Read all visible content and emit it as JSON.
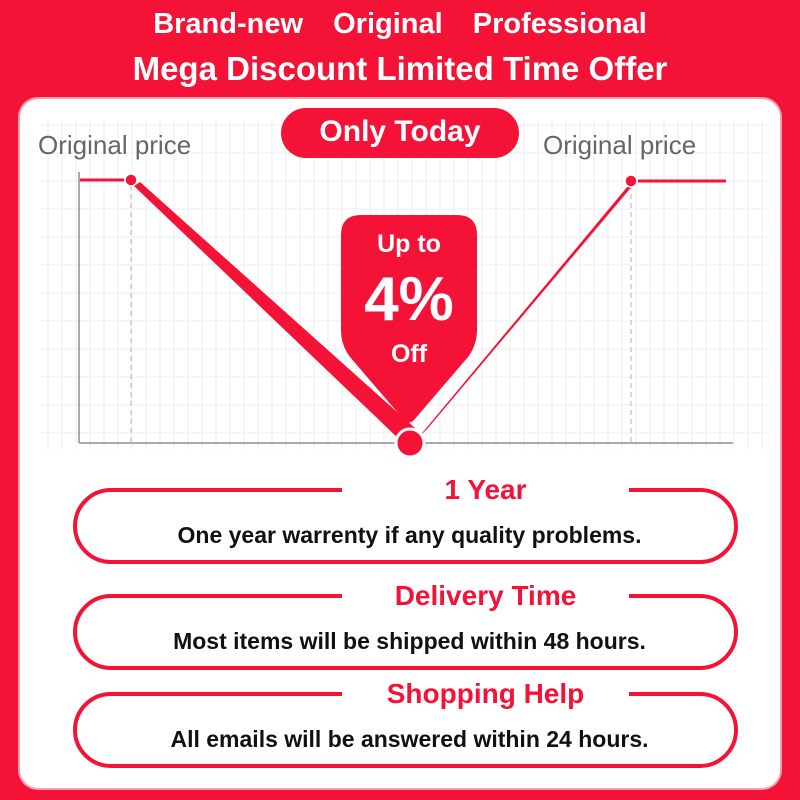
{
  "header": {
    "tagline": "Brand-new Original Professional",
    "headline": "Mega Discount Limited Time Offer"
  },
  "promo": {
    "badge": "Only Today",
    "original_price_left": "Original price",
    "original_price_right": "Original price",
    "discount": {
      "prefix": "Up to",
      "value": "4%",
      "suffix": "Off"
    }
  },
  "colors": {
    "accent": "#f51237",
    "panel": "#ffffff",
    "text": "#111111",
    "muted": "#666666"
  },
  "cards": [
    {
      "title": "1 Year",
      "description": "One year warrenty if any quality problems."
    },
    {
      "title": "Delivery Time",
      "description": "Most items will be shipped within 48 hours."
    },
    {
      "title": "Shopping Help",
      "description": "All emails will be answered within 24 hours."
    }
  ]
}
